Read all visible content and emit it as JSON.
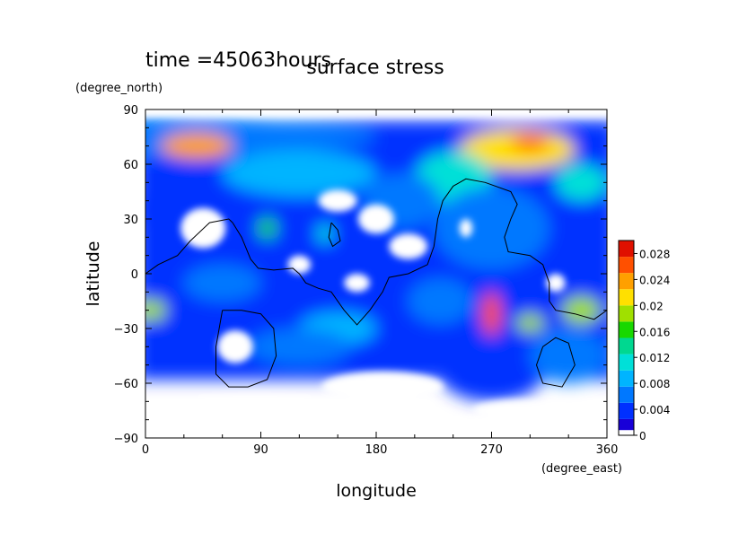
{
  "header": {
    "time_label": "time =45063hours",
    "title": "surface stress"
  },
  "chart_data": {
    "type": "heatmap",
    "title": "surface stress",
    "subtitle": "time =45063hours",
    "xlabel": "longitude",
    "ylabel": "latitude",
    "xunit": "(degree_east)",
    "yunit": "(degree_north)",
    "xlim": [
      0,
      360
    ],
    "ylim": [
      -90,
      90
    ],
    "xticks": [
      "0",
      "90",
      "180",
      "270",
      "360"
    ],
    "yticks": [
      "90",
      "60",
      "30",
      "0",
      "−30",
      "−60",
      "−90"
    ],
    "xtick_values": [
      0,
      90,
      180,
      270,
      360
    ],
    "ytick_values": [
      90,
      60,
      30,
      0,
      -30,
      -60,
      -90
    ],
    "colorbar": {
      "min": 0,
      "max": 0.03,
      "labels": [
        "0",
        "0.004",
        "0.008",
        "0.012",
        "0.016",
        "0.02",
        "0.024",
        "0.028"
      ],
      "label_values": [
        0,
        0.004,
        0.008,
        0.012,
        0.016,
        0.02,
        0.024,
        0.028
      ],
      "colors": [
        "#ffffff",
        "#1800d8",
        "#0030ff",
        "#0078ff",
        "#00b4ff",
        "#00e0d8",
        "#00d890",
        "#18d800",
        "#a0e000",
        "#ffe000",
        "#ffa000",
        "#ff5000",
        "#e01000"
      ]
    },
    "blobs": [
      {
        "lon": 0,
        "lat": 75,
        "w": 360,
        "h": 22,
        "value": 0.006
      },
      {
        "lon": 40,
        "lat": 70,
        "w": 55,
        "h": 14,
        "value": 0.024
      },
      {
        "lon": 290,
        "lat": 68,
        "w": 90,
        "h": 22,
        "value": 0.022
      },
      {
        "lon": 300,
        "lat": 72,
        "w": 30,
        "h": 8,
        "value": 0.027
      },
      {
        "lon": 240,
        "lat": 52,
        "w": 60,
        "h": 30,
        "value": 0.011
      },
      {
        "lon": 120,
        "lat": 55,
        "w": 120,
        "h": 25,
        "value": 0.008
      },
      {
        "lon": 340,
        "lat": 50,
        "w": 40,
        "h": 20,
        "value": 0.012
      },
      {
        "lon": 30,
        "lat": 35,
        "w": 80,
        "h": 40,
        "value": 0.005
      },
      {
        "lon": 270,
        "lat": 25,
        "w": 90,
        "h": 45,
        "value": 0.007
      },
      {
        "lon": 100,
        "lat": 10,
        "w": 90,
        "h": 30,
        "value": 0.004
      },
      {
        "lon": 95,
        "lat": 25,
        "w": 14,
        "h": 12,
        "value": 0.016
      },
      {
        "lon": 140,
        "lat": 22,
        "w": 12,
        "h": 10,
        "value": 0.012
      },
      {
        "lon": 270,
        "lat": -22,
        "w": 14,
        "h": 24,
        "value": 0.026
      },
      {
        "lon": 300,
        "lat": -27,
        "w": 22,
        "h": 10,
        "value": 0.02
      },
      {
        "lon": 340,
        "lat": -20,
        "w": 30,
        "h": 15,
        "value": 0.018
      },
      {
        "lon": 5,
        "lat": -20,
        "w": 22,
        "h": 12,
        "value": 0.018
      },
      {
        "lon": 150,
        "lat": -30,
        "w": 60,
        "h": 18,
        "value": 0.009
      },
      {
        "lon": 230,
        "lat": -15,
        "w": 50,
        "h": 25,
        "value": 0.007
      },
      {
        "lon": 120,
        "lat": -40,
        "w": 80,
        "h": 20,
        "value": 0.006
      },
      {
        "lon": 270,
        "lat": -55,
        "w": 80,
        "h": 30,
        "value": 0.005
      },
      {
        "lon": 330,
        "lat": -45,
        "w": 60,
        "h": 30,
        "value": 0.006
      },
      {
        "lon": 60,
        "lat": -5,
        "w": 60,
        "h": 20,
        "value": 0.007
      },
      {
        "lon": 200,
        "lat": 40,
        "w": 60,
        "h": 30,
        "value": 0.006
      }
    ],
    "voids": [
      {
        "lon": 185,
        "lat": -62,
        "w": 95,
        "h": 17
      },
      {
        "lon": 85,
        "lat": -72,
        "w": 110,
        "h": 10
      },
      {
        "lon": 30,
        "lat": -75,
        "w": 60,
        "h": 10
      },
      {
        "lon": 290,
        "lat": -75,
        "w": 70,
        "h": 12
      },
      {
        "lon": 180,
        "lat": 30,
        "w": 28,
        "h": 16
      },
      {
        "lon": 45,
        "lat": 25,
        "w": 35,
        "h": 22
      },
      {
        "lon": 70,
        "lat": -40,
        "w": 28,
        "h": 18
      },
      {
        "lon": 205,
        "lat": 15,
        "w": 30,
        "h": 14
      },
      {
        "lon": 150,
        "lat": 40,
        "w": 30,
        "h": 12
      },
      {
        "lon": 120,
        "lat": 5,
        "w": 18,
        "h": 10
      },
      {
        "lon": 165,
        "lat": -5,
        "w": 20,
        "h": 10
      },
      {
        "lon": 250,
        "lat": 25,
        "w": 10,
        "h": 10
      },
      {
        "lon": 320,
        "lat": -5,
        "w": 15,
        "h": 10
      }
    ],
    "coastlines": [
      [
        [
          68,
          28
        ],
        [
          75,
          20
        ],
        [
          82,
          8
        ],
        [
          88,
          3
        ],
        [
          100,
          2
        ],
        [
          115,
          3
        ],
        [
          120,
          0
        ],
        [
          125,
          -5
        ],
        [
          135,
          -8
        ],
        [
          145,
          -10
        ],
        [
          155,
          -20
        ],
        [
          165,
          -28
        ],
        [
          175,
          -20
        ],
        [
          185,
          -10
        ],
        [
          190,
          -2
        ],
        [
          205,
          0
        ],
        [
          220,
          5
        ],
        [
          225,
          15
        ],
        [
          228,
          30
        ],
        [
          232,
          40
        ],
        [
          240,
          48
        ],
        [
          250,
          52
        ],
        [
          265,
          50
        ],
        [
          285,
          45
        ],
        [
          290,
          38
        ],
        [
          285,
          30
        ],
        [
          280,
          20
        ],
        [
          283,
          12
        ],
        [
          300,
          10
        ],
        [
          310,
          5
        ],
        [
          315,
          -5
        ],
        [
          315,
          -15
        ],
        [
          320,
          -20
        ],
        [
          335,
          -22
        ],
        [
          350,
          -25
        ],
        [
          360,
          -20
        ]
      ],
      [
        [
          0,
          0
        ],
        [
          10,
          5
        ],
        [
          25,
          10
        ],
        [
          35,
          18
        ],
        [
          50,
          28
        ],
        [
          65,
          30
        ],
        [
          68,
          28
        ]
      ],
      [
        [
          60,
          -20
        ],
        [
          75,
          -20
        ],
        [
          90,
          -22
        ],
        [
          100,
          -30
        ],
        [
          102,
          -45
        ],
        [
          95,
          -58
        ],
        [
          80,
          -62
        ],
        [
          65,
          -62
        ],
        [
          55,
          -55
        ],
        [
          55,
          -40
        ],
        [
          60,
          -20
        ]
      ],
      [
        [
          310,
          -40
        ],
        [
          320,
          -35
        ],
        [
          330,
          -38
        ],
        [
          335,
          -50
        ],
        [
          325,
          -62
        ],
        [
          310,
          -60
        ],
        [
          305,
          -50
        ],
        [
          310,
          -40
        ]
      ],
      [
        [
          145,
          28
        ],
        [
          150,
          24
        ],
        [
          152,
          18
        ],
        [
          146,
          15
        ],
        [
          143,
          20
        ],
        [
          145,
          28
        ]
      ]
    ]
  }
}
